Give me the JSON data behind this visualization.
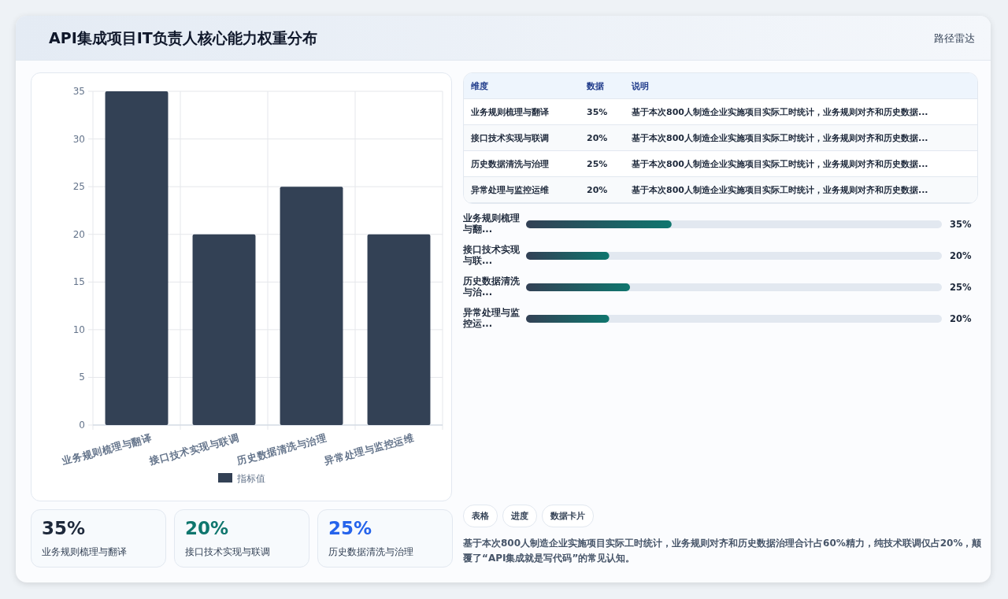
{
  "chart_data": [
    {
      "type": "bar",
      "title": "API集成项目IT负责人核心能力权重分布",
      "categories": [
        "业务规则梳理与翻译",
        "接口技术实现与联调",
        "历史数据清洗与治理",
        "异常处理与监控运维"
      ],
      "series": [
        {
          "name": "指标值",
          "color": "#334155",
          "values": [
            35,
            20,
            25,
            20
          ]
        }
      ],
      "ylim": [
        0,
        35
      ],
      "yticks": [
        0,
        5,
        10,
        15,
        20,
        25,
        30,
        35
      ],
      "grid": true,
      "legend": "bottom"
    },
    {
      "type": "other",
      "annotations": [
        "维度",
        "数据",
        "说明",
        "业务规则梳理与翻译",
        "35%",
        "基于本次800人制造企业实施项目实际工时统计，业务规则对齐和历史数据...",
        "接口技术实现与联调",
        "20%",
        "基于本次800人制造企业实施项目实际工时统计，业务规则对齐和历史数据...",
        "历史数据清洗与治理",
        "25%",
        "基于本次800人制造企业实施项目实际工时统计，业务规则对齐和历史数据...",
        "异常处理与监控运维",
        "20%",
        "基于本次800人制造企业实施项目实际工时统计，业务规则对齐和历史数据..."
      ]
    },
    {
      "type": "bar",
      "orientation": "horizontal",
      "categories": [
        "业务规则梳理与翻...",
        "接口技术实现与联...",
        "历史数据清洗与治...",
        "异常处理与监控运..."
      ],
      "values": [
        35,
        20,
        25,
        20
      ],
      "value_labels": [
        "35%",
        "20%",
        "25%",
        "20%"
      ],
      "color": "#0f766e",
      "xlim": [
        0,
        100
      ]
    },
    {
      "type": "other",
      "annotations": [
        "35%",
        "业务规则梳理与翻译",
        "20%",
        "接口技术实现与联调",
        "25%",
        "历史数据清洗与治理"
      ],
      "colors": [
        "#1e293b",
        "#0f766e",
        "#2563eb"
      ]
    },
    {
      "type": "other",
      "annotations": [
        "路径雷达"
      ]
    },
    {
      "type": "other",
      "annotations": [
        "表格",
        "进度",
        "数据卡片",
        "基于本次800人制造企业实施项目实际工时统计，业务规则对齐和历史数据治理合计占60%精力，纯技术联调仅占20%，颠覆了“API集成就是写代码”的常见认知。"
      ]
    }
  ]
}
